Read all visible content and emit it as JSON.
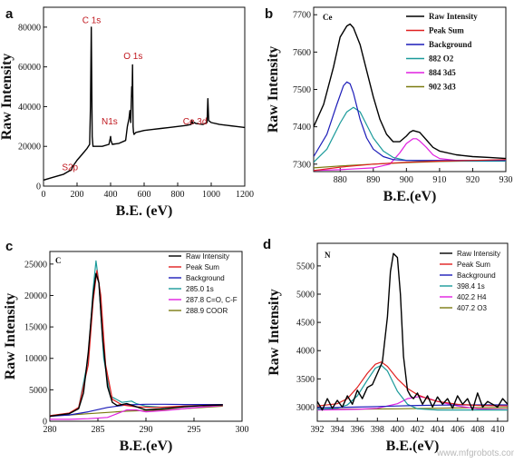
{
  "watermark": "www.mfgrobots.com",
  "chart_data": [
    {
      "type": "line",
      "panel": "a",
      "xlabel": "B.E. (eV)",
      "ylabel": "Raw Intensity",
      "xlim": [
        0,
        1200
      ],
      "ylim": [
        0,
        90000
      ],
      "xticks": [
        0,
        200,
        400,
        600,
        800,
        1000,
        1200
      ],
      "yticks": [
        0,
        20000,
        40000,
        60000,
        80000
      ],
      "annotations": [
        {
          "text": "C 1s",
          "x": 285,
          "y": 82000
        },
        {
          "text": "O 1s",
          "x": 531,
          "y": 64000
        },
        {
          "text": "N1s",
          "x": 400,
          "y": 31000
        },
        {
          "text": "Ce 3d",
          "x": 885,
          "y": 31000
        },
        {
          "text": "S2p",
          "x": 164,
          "y": 8000
        }
      ],
      "series": [
        {
          "name": "",
          "color": "#000000",
          "x": [
            0,
            40,
            80,
            120,
            150,
            165,
            175,
            200,
            230,
            260,
            275,
            280,
            285,
            290,
            295,
            310,
            350,
            390,
            398,
            400,
            402,
            410,
            450,
            490,
            500,
            510,
            515,
            520,
            526,
            528,
            531,
            534,
            537,
            540,
            550,
            600,
            650,
            700,
            750,
            800,
            850,
            880,
            885,
            890,
            900,
            910,
            950,
            975,
            980,
            985,
            1000,
            1050,
            1100,
            1150,
            1200
          ],
          "y": [
            3000,
            4000,
            5000,
            6000,
            7500,
            8000,
            10000,
            13000,
            16000,
            19000,
            21000,
            40000,
            80000,
            25000,
            20000,
            20000,
            20000,
            21000,
            24000,
            25000,
            23000,
            21000,
            21500,
            23000,
            30000,
            34000,
            38000,
            32000,
            50000,
            45000,
            61000,
            30000,
            27000,
            26000,
            27000,
            28000,
            28500,
            29000,
            29500,
            30000,
            30500,
            31000,
            33000,
            31500,
            32000,
            31500,
            31000,
            32000,
            44000,
            33000,
            32000,
            31000,
            30500,
            30000,
            29500
          ]
        }
      ]
    },
    {
      "type": "line",
      "panel": "b",
      "corner_label": "Ce",
      "xlabel": "B.E.(eV)",
      "ylabel": "Raw Intensity",
      "xlim": [
        872,
        930
      ],
      "ylim": [
        7280,
        7720
      ],
      "xticks": [
        880,
        890,
        900,
        910,
        920,
        930
      ],
      "yticks": [
        7300,
        7400,
        7500,
        7600,
        7700
      ],
      "legend": [
        "Raw Intensity",
        "Peak Sum",
        "Background",
        "882 O2",
        "884 3d5",
        "902 3d3"
      ],
      "legend_placement": "top-right",
      "series": [
        {
          "name": "Raw Intensity",
          "color": "#000000",
          "x": [
            872,
            875,
            878,
            880,
            882,
            883,
            884,
            886,
            888,
            890,
            892,
            894,
            896,
            898,
            900,
            901,
            902,
            904,
            906,
            908,
            910,
            915,
            920,
            925,
            930
          ],
          "y": [
            7400,
            7460,
            7560,
            7640,
            7670,
            7675,
            7665,
            7620,
            7550,
            7480,
            7420,
            7380,
            7360,
            7360,
            7375,
            7385,
            7390,
            7385,
            7365,
            7345,
            7335,
            7325,
            7320,
            7318,
            7315
          ]
        },
        {
          "name": "Peak Sum",
          "color": "#e02020",
          "x": [
            872,
            880,
            890,
            900,
            910,
            920,
            930
          ],
          "y": [
            7283,
            7292,
            7300,
            7305,
            7308,
            7310,
            7312
          ]
        },
        {
          "name": "Background",
          "color": "#1c1cb8",
          "x": [
            872,
            876,
            879,
            881,
            882,
            883,
            884,
            886,
            888,
            890,
            893,
            896,
            900,
            905,
            910,
            920,
            930
          ],
          "y": [
            7320,
            7380,
            7460,
            7510,
            7520,
            7515,
            7490,
            7420,
            7370,
            7340,
            7320,
            7312,
            7310,
            7310,
            7310,
            7310,
            7310
          ]
        },
        {
          "name": "882 O2",
          "color": "#1a9a9a",
          "x": [
            872,
            876,
            880,
            882,
            884,
            886,
            888,
            890,
            893,
            896,
            900,
            905,
            910,
            920,
            930
          ],
          "y": [
            7305,
            7340,
            7410,
            7440,
            7452,
            7440,
            7405,
            7370,
            7335,
            7318,
            7310,
            7308,
            7308,
            7308,
            7308
          ]
        },
        {
          "name": "884 3d5",
          "color": "#e020e0",
          "x": [
            872,
            880,
            890,
            895,
            898,
            900,
            902,
            903,
            904,
            906,
            908,
            910,
            915,
            920,
            925,
            930
          ],
          "y": [
            7283,
            7285,
            7290,
            7300,
            7330,
            7355,
            7368,
            7368,
            7362,
            7345,
            7325,
            7315,
            7310,
            7310,
            7310,
            7310
          ]
        },
        {
          "name": "902 3d3",
          "color": "#7a7a10",
          "x": [
            872,
            880,
            890,
            900,
            910,
            920,
            930
          ],
          "y": [
            7290,
            7295,
            7300,
            7304,
            7307,
            7309,
            7310
          ]
        }
      ]
    },
    {
      "type": "line",
      "panel": "c",
      "corner_label": "C",
      "xlabel": "B.E.(eV)",
      "ylabel": "Raw Intensity",
      "xlim": [
        280,
        300
      ],
      "ylim": [
        0,
        27000
      ],
      "xticks": [
        280,
        285,
        290,
        295,
        300
      ],
      "yticks": [
        0,
        5000,
        10000,
        15000,
        20000,
        25000
      ],
      "legend": [
        "Raw Intensity",
        "Peak Sum",
        "Background",
        "285.0 1s",
        "287.8 C=O, C-F",
        "288.9 COOR"
      ],
      "legend_placement": "top-right",
      "series": [
        {
          "name": "Raw Intensity",
          "color": "#000000",
          "x": [
            280,
            281,
            282,
            283,
            283.5,
            284,
            284.5,
            284.8,
            285.1,
            285.5,
            286,
            286.5,
            287,
            288,
            289,
            290,
            292,
            294,
            296,
            298
          ],
          "y": [
            800,
            1000,
            1200,
            2000,
            4500,
            11000,
            20000,
            23500,
            22000,
            13000,
            5500,
            3000,
            2500,
            2800,
            2300,
            1800,
            2000,
            2300,
            2500,
            2600
          ]
        },
        {
          "name": "Peak Sum",
          "color": "#e02020",
          "x": [
            280,
            282,
            283,
            284,
            284.5,
            284.9,
            285.3,
            285.8,
            286.5,
            287.5,
            289,
            291,
            294,
            298
          ],
          "y": [
            900,
            1300,
            2200,
            9000,
            19000,
            24000,
            20000,
            9000,
            3500,
            2600,
            2300,
            2200,
            2400,
            2600
          ]
        },
        {
          "name": "Background",
          "color": "#1c1cb8",
          "x": [
            280,
            282,
            284,
            286,
            288,
            290,
            292,
            294,
            296,
            298
          ],
          "y": [
            800,
            1000,
            1500,
            2200,
            2600,
            2700,
            2700,
            2650,
            2650,
            2650
          ]
        },
        {
          "name": "285.0 1s",
          "color": "#1a9a9a",
          "x": [
            280,
            282,
            283,
            284,
            284.5,
            284.8,
            285.1,
            285.6,
            286.3,
            287.5,
            288.5,
            289,
            290,
            292,
            294,
            298
          ],
          "y": [
            900,
            1200,
            2200,
            10000,
            21000,
            25500,
            22000,
            10000,
            4000,
            3000,
            3200,
            2800,
            2400,
            2200,
            2400,
            2600
          ]
        },
        {
          "name": "287.8 C=O, C-F",
          "color": "#e020e0",
          "x": [
            280,
            282,
            284,
            286,
            287,
            288,
            289,
            290,
            292,
            294,
            296,
            298
          ],
          "y": [
            300,
            300,
            400,
            600,
            1200,
            1800,
            1800,
            1500,
            1700,
            2000,
            2300,
            2500
          ]
        },
        {
          "name": "288.9 COOR",
          "color": "#7a7a10",
          "x": [
            280,
            282,
            284,
            286,
            288,
            290,
            292,
            294,
            296,
            298
          ],
          "y": [
            900,
            1000,
            1200,
            1400,
            1600,
            1700,
            1800,
            2000,
            2200,
            2400
          ]
        }
      ]
    },
    {
      "type": "line",
      "panel": "d",
      "corner_label": "N",
      "xlabel": "B.E.(eV)",
      "ylabel": "Raw Intensity",
      "xlim": [
        392,
        411
      ],
      "ylim": [
        2750,
        5900
      ],
      "xticks": [
        392,
        394,
        396,
        398,
        400,
        402,
        404,
        406,
        408,
        410
      ],
      "yticks": [
        3000,
        3500,
        4000,
        4500,
        5000,
        5500
      ],
      "legend": [
        "Raw Intensity",
        "Peak Sum",
        "Background",
        "398.4 1s",
        "402.2 H4",
        "407.2 O3"
      ],
      "legend_placement": "top-right",
      "series": [
        {
          "name": "Raw Intensity",
          "color": "#000000",
          "x": [
            392,
            392.5,
            393,
            393.5,
            394,
            394.5,
            395,
            395.5,
            396,
            396.5,
            397,
            397.5,
            398,
            398.5,
            399,
            399.3,
            399.6,
            400,
            400.3,
            400.6,
            401,
            401.3,
            401.6,
            402,
            402.5,
            403,
            403.5,
            404,
            404.5,
            405,
            405.5,
            406,
            406.5,
            407,
            407.5,
            408,
            408.5,
            409,
            409.5,
            410,
            410.5,
            411
          ],
          "y": [
            3100,
            2950,
            3150,
            2980,
            3120,
            3000,
            3200,
            3050,
            3300,
            3150,
            3350,
            3400,
            3600,
            3800,
            4600,
            5400,
            5720,
            5650,
            5000,
            3900,
            3300,
            3200,
            3150,
            3250,
            3050,
            3200,
            3000,
            3180,
            3050,
            3150,
            2980,
            3200,
            3050,
            3150,
            2950,
            3250,
            3000,
            3100,
            3050,
            3000,
            3150,
            3050
          ]
        },
        {
          "name": "Peak Sum",
          "color": "#e02020",
          "x": [
            392,
            394,
            395,
            396,
            397,
            397.8,
            398.4,
            399,
            400,
            401,
            402,
            403,
            404,
            406,
            408,
            411
          ],
          "y": [
            3020,
            3060,
            3150,
            3350,
            3600,
            3760,
            3800,
            3720,
            3500,
            3330,
            3220,
            3150,
            3100,
            3050,
            3030,
            3020
          ]
        },
        {
          "name": "Background",
          "color": "#1c1cb8",
          "x": [
            392,
            394,
            396,
            398,
            400,
            402,
            404,
            406,
            408,
            411
          ],
          "y": [
            2990,
            2995,
            3000,
            3010,
            3020,
            3030,
            3035,
            3040,
            3040,
            3040
          ]
        },
        {
          "name": "398.4 1s",
          "color": "#1a9a9a",
          "x": [
            392,
            394,
            395,
            396,
            397,
            397.8,
            398.4,
            399,
            400,
            401,
            402,
            404,
            411
          ],
          "y": [
            2960,
            2980,
            3040,
            3200,
            3480,
            3690,
            3740,
            3640,
            3280,
            3050,
            2970,
            2950,
            2950
          ]
        },
        {
          "name": "402.2 H4",
          "color": "#e020e0",
          "x": [
            392,
            396,
            398,
            400,
            401,
            402,
            402.2,
            403,
            404,
            406,
            408,
            411
          ],
          "y": [
            2950,
            2960,
            2980,
            3060,
            3150,
            3180,
            3185,
            3160,
            3100,
            3020,
            2970,
            2955
          ]
        },
        {
          "name": "407.2 O3",
          "color": "#7a7a10",
          "x": [
            392,
            396,
            400,
            404,
            407.2,
            411
          ],
          "y": [
            2960,
            2965,
            2970,
            2980,
            2990,
            2990
          ]
        }
      ]
    }
  ]
}
